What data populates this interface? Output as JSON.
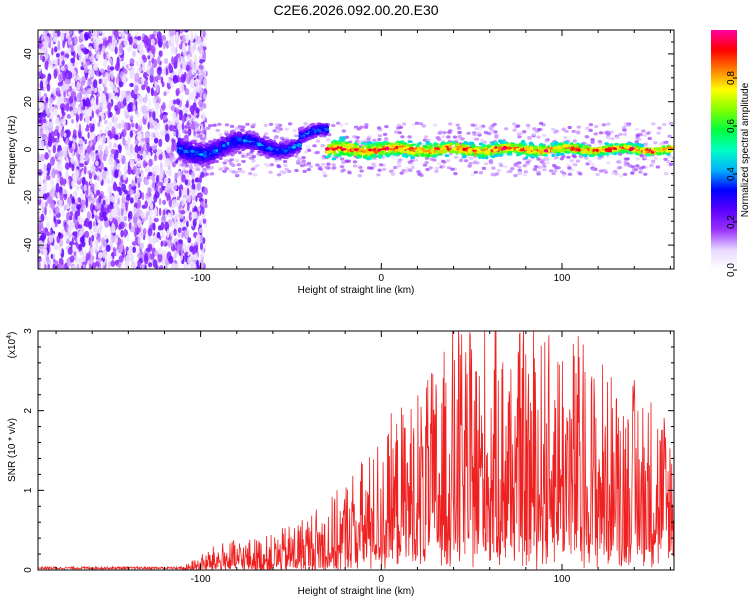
{
  "title": "C2E6.2026.092.00.20.E30",
  "chart_data": [
    {
      "type": "scatter",
      "title": "C2E6.2026.092.00.20.E30",
      "xlabel": "Height of straight line (km)",
      "ylabel": "Frequency (Hz)",
      "xlim": [
        -190,
        162
      ],
      "ylim": [
        -50,
        50
      ],
      "xticks": [
        -100,
        0,
        100
      ],
      "yticks": [
        -40,
        -20,
        0,
        20,
        40
      ],
      "grid": false,
      "description_of_signal": [
        {
          "x_from": -190,
          "x_to": -105,
          "frequency_spread_hz": [
            -50,
            50
          ],
          "amplitude_range": [
            0.05,
            0.25
          ]
        },
        {
          "x_from": -112,
          "x_to": -30,
          "frequency_center_hz": [
            0,
            3
          ],
          "frequency_halfwidth_hz": 7,
          "amplitude_range": [
            0.15,
            0.45
          ]
        },
        {
          "x_from": -30,
          "x_to": 162,
          "frequency_center_hz": [
            0,
            0
          ],
          "frequency_halfwidth_hz": 5,
          "amplitude_range": [
            0.45,
            1.0
          ]
        }
      ],
      "colorbar": {
        "label": "Normalized spectral amplitude",
        "range": [
          0.0,
          1.0
        ],
        "ticks": [
          0.0,
          0.2,
          0.4,
          0.6,
          0.8
        ],
        "colormap": [
          "#ffffff",
          "#e8d8ff",
          "#9a33ff",
          "#5a00ff",
          "#0000ff",
          "#00b4ff",
          "#00ffc0",
          "#00ff40",
          "#80ff00",
          "#ffff00",
          "#ff8000",
          "#ff0000",
          "#ff00a0"
        ]
      }
    },
    {
      "type": "line",
      "xlabel": "Height of straight line (km)",
      "ylabel": "SNR (10 * v/v)",
      "y_multiplier_label": "(x10",
      "y_multiplier_exponent": "4",
      "y_multiplier_suffix": ")",
      "xlim": [
        -190,
        162
      ],
      "ylim": [
        0,
        3
      ],
      "xticks": [
        -100,
        0,
        100
      ],
      "yticks": [
        0,
        1,
        2,
        3
      ],
      "color": "#ee2020",
      "envelope": [
        {
          "x": -190,
          "y": 0.03
        },
        {
          "x": -110,
          "y": 0.04
        },
        {
          "x": -90,
          "y": 0.35
        },
        {
          "x": -60,
          "y": 0.45
        },
        {
          "x": -30,
          "y": 0.9
        },
        {
          "x": -10,
          "y": 1.3
        },
        {
          "x": 10,
          "y": 1.9
        },
        {
          "x": 30,
          "y": 2.4
        },
        {
          "x": 40,
          "y": 2.95
        },
        {
          "x": 80,
          "y": 2.85
        },
        {
          "x": 100,
          "y": 3.0
        },
        {
          "x": 125,
          "y": 2.4
        },
        {
          "x": 150,
          "y": 2.2
        },
        {
          "x": 162,
          "y": 1.8
        }
      ]
    }
  ]
}
